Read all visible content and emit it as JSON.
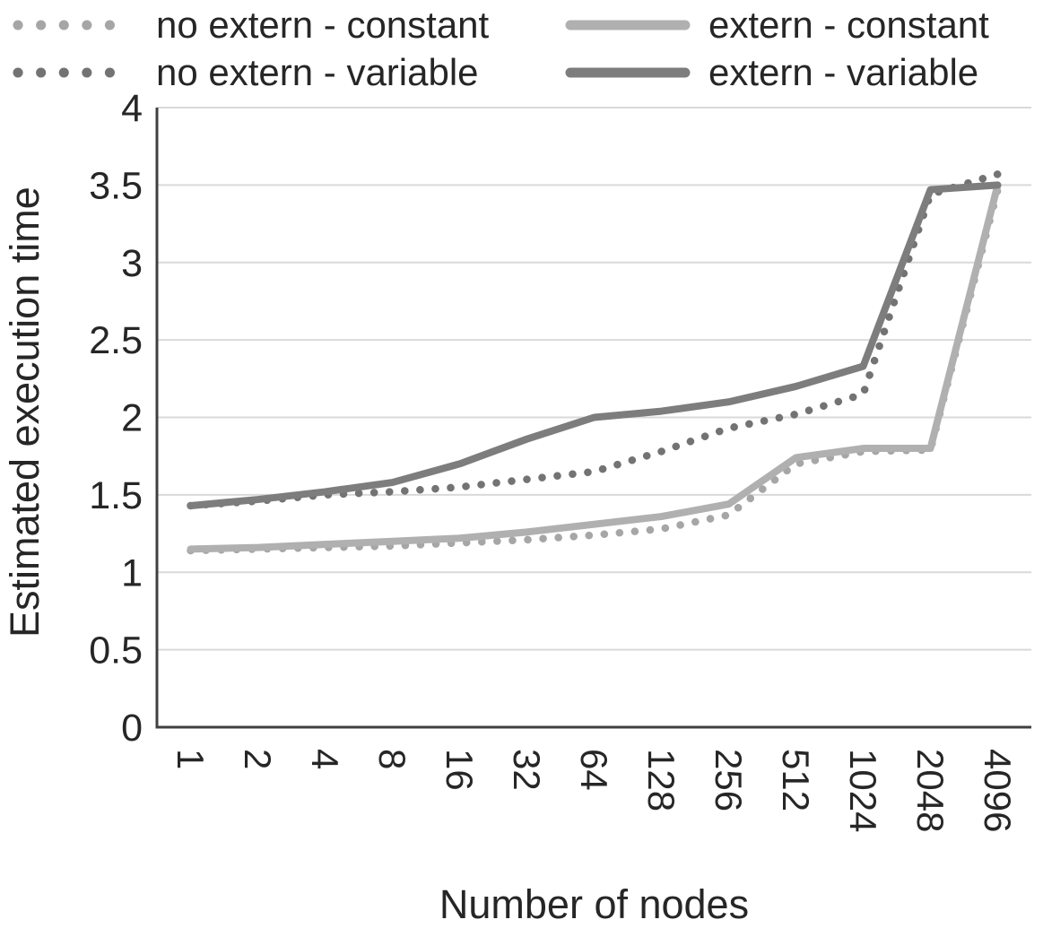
{
  "page": {
    "background": "#ffffff"
  },
  "chart_data": {
    "type": "line",
    "title": "",
    "xlabel": "Number of nodes",
    "ylabel": "Estimated execution time",
    "categories": [
      "1",
      "2",
      "4",
      "8",
      "16",
      "32",
      "64",
      "128",
      "256",
      "512",
      "1024",
      "2048",
      "4096"
    ],
    "ylim": [
      0,
      4
    ],
    "yticks": [
      0,
      0.5,
      1,
      1.5,
      2,
      2.5,
      3,
      3.5,
      4
    ],
    "ytick_labels": [
      "0",
      "0.5",
      "1",
      "1.5",
      "2",
      "2.5",
      "3",
      "3.5",
      "4"
    ],
    "grid": "horizontal-only",
    "legend_position": "top",
    "colors": {
      "gridline": "#d9d9d9",
      "axis": "#404040",
      "text": "#262626",
      "light_gray": "#b0b0b0",
      "dark_gray": "#7b7b7b"
    },
    "series": [
      {
        "name": "no extern - constant",
        "style": "dotted",
        "color": "#a6a6a6",
        "values": [
          1.14,
          1.15,
          1.16,
          1.17,
          1.19,
          1.21,
          1.24,
          1.28,
          1.37,
          1.7,
          1.78,
          1.79,
          3.47
        ]
      },
      {
        "name": "extern - constant",
        "style": "solid",
        "color": "#b0b0b0",
        "values": [
          1.15,
          1.16,
          1.18,
          1.2,
          1.22,
          1.26,
          1.31,
          1.36,
          1.44,
          1.74,
          1.8,
          1.8,
          3.5
        ]
      },
      {
        "name": "no extern - variable",
        "style": "dotted",
        "color": "#737373",
        "values": [
          1.43,
          1.46,
          1.5,
          1.52,
          1.55,
          1.6,
          1.65,
          1.78,
          1.93,
          2.02,
          2.15,
          3.44,
          3.57
        ]
      },
      {
        "name": "extern - variable",
        "style": "solid",
        "color": "#7d7d7d",
        "values": [
          1.43,
          1.47,
          1.52,
          1.58,
          1.7,
          1.86,
          2.0,
          2.04,
          2.1,
          2.2,
          2.33,
          3.47,
          3.5
        ]
      }
    ]
  }
}
